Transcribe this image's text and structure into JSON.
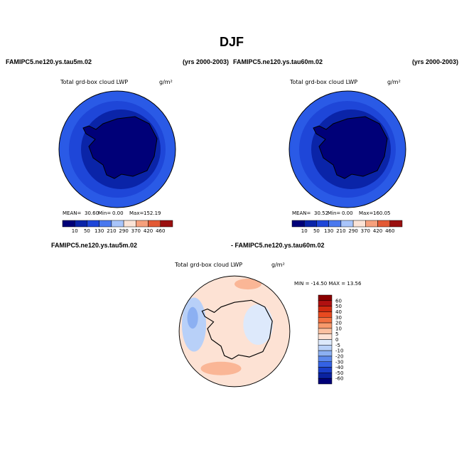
{
  "title": "DJF",
  "panels": [
    {
      "case": "FAMIPC5.ne120.ys.tau5m.02",
      "years": "(yrs 2000-2003)",
      "variable": "Total grd-box cloud LWP",
      "units": "g/m²",
      "stats": [
        "MEAN=",
        "30.60",
        "Min=",
        "0.00",
        "Max=",
        "152.19"
      ],
      "colorbar": {
        "labels": [
          "10",
          "50",
          "130",
          "210",
          "290",
          "370",
          "420",
          "460"
        ],
        "colors": [
          "#000078",
          "#0a24a8",
          "#1e46d8",
          "#4a78ee",
          "#a8c4fa",
          "#fbe3d6",
          "#f6a07c",
          "#e35a35",
          "#9a0f0f"
        ]
      }
    },
    {
      "case": "FAMIPC5.ne120.ys.tau60m.02",
      "years": "(yrs 2000-2003)",
      "variable": "Total grd-box cloud LWP",
      "units": "g/m²",
      "stats": [
        "MEAN=",
        "30.52",
        "Min=",
        "0.00",
        "Max=",
        "160.05"
      ],
      "colorbar": {
        "labels": [
          "10",
          "50",
          "130",
          "210",
          "290",
          "370",
          "420",
          "460"
        ],
        "colors": [
          "#000078",
          "#0a24a8",
          "#1e46d8",
          "#4a78ee",
          "#a8c4fa",
          "#fbe3d6",
          "#f6a07c",
          "#e35a35",
          "#9a0f0f"
        ]
      }
    }
  ],
  "difference": {
    "left": "FAMIPC5.ne120.ys.tau5m.02",
    "right": "- FAMIPC5.ne120.ys.tau60m.02",
    "variable": "Total grd-box cloud LWP",
    "units": "g/m²",
    "minmax": "MIN = -14.50 MAX =  13.56",
    "colorbar": {
      "labels": [
        "60",
        "50",
        "40",
        "30",
        "20",
        "10",
        "5",
        "0",
        "-5",
        "-10",
        "-20",
        "-30",
        "-40",
        "-50",
        "-60"
      ],
      "colors": [
        "#8b0000",
        "#b01010",
        "#d02a10",
        "#e84a20",
        "#f27040",
        "#f89a6c",
        "#fbc0a0",
        "#fde2d4",
        "#dde9fb",
        "#b8d0f8",
        "#8cb0f2",
        "#5c88ec",
        "#3462e4",
        "#1a3ec8",
        "#0a22a0",
        "#000078"
      ]
    }
  }
}
